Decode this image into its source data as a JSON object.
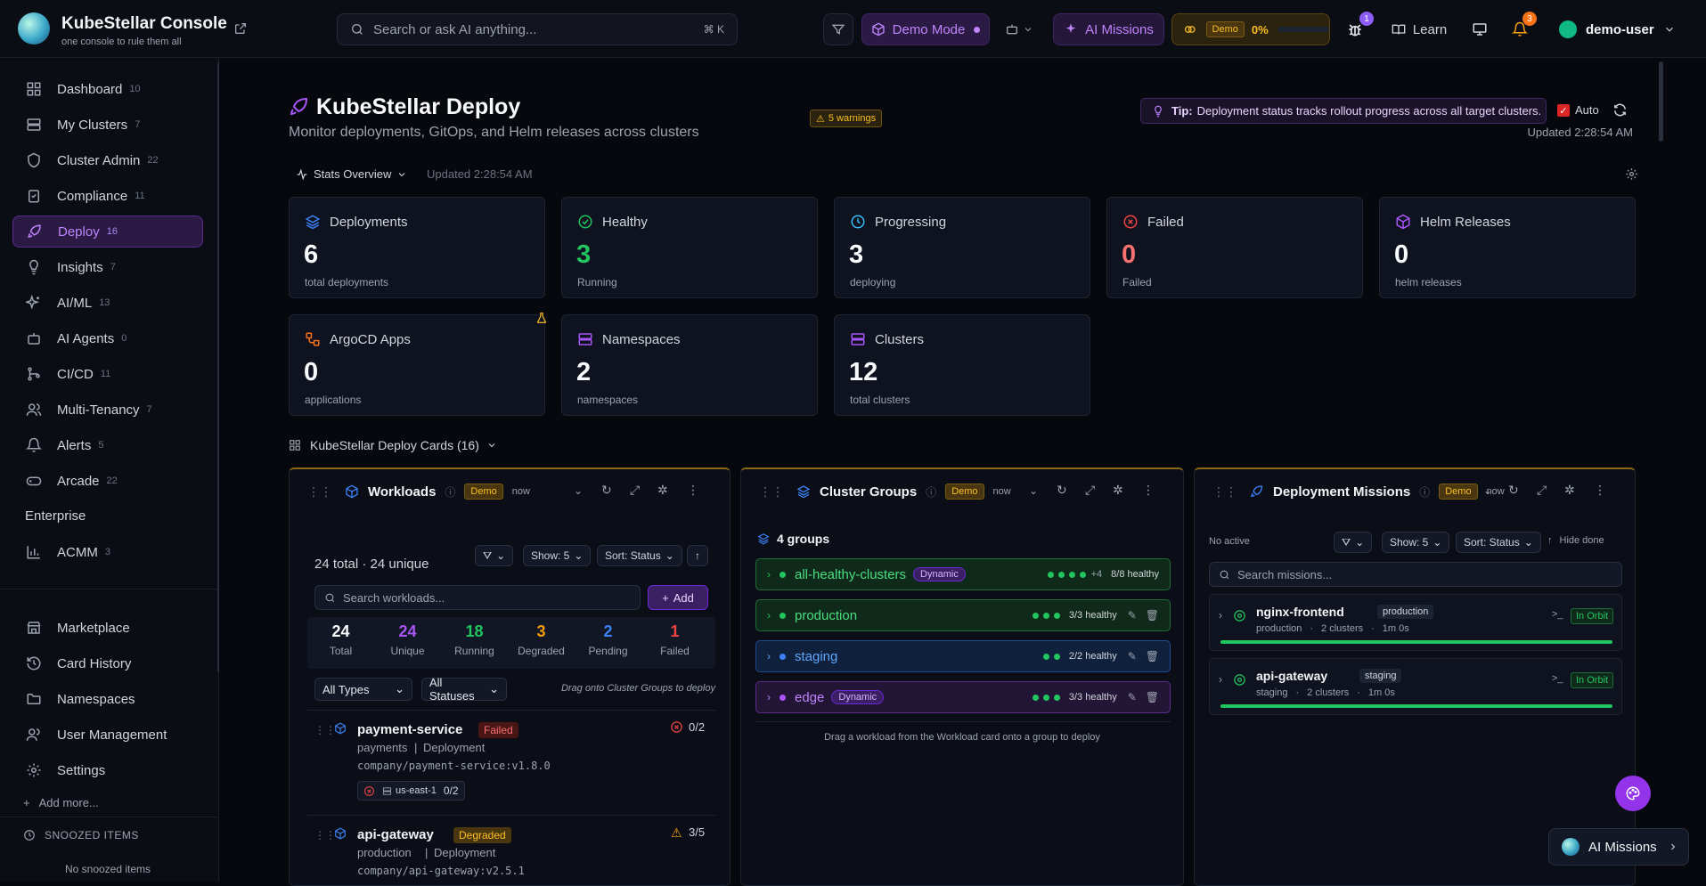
{
  "header": {
    "title": "KubeStellar Console",
    "subtitle": "one console to rule them all",
    "search_placeholder": "Search or ask AI anything...",
    "search_shortcut": "⌘ K",
    "demo_mode_label": "Demo Mode",
    "ai_missions_label": "AI Missions",
    "demo_badge": "Demo",
    "demo_percent": "0%",
    "bug_count": "1",
    "learn_label": "Learn",
    "notification_count": "3",
    "user_name": "demo-user"
  },
  "sidebar": {
    "items": [
      {
        "label": "Dashboard",
        "count": "10"
      },
      {
        "label": "My Clusters",
        "count": "7"
      },
      {
        "label": "Cluster Admin",
        "count": "22"
      },
      {
        "label": "Compliance",
        "count": "11"
      },
      {
        "label": "Deploy",
        "count": "16"
      },
      {
        "label": "Insights",
        "count": "7"
      },
      {
        "label": "AI/ML",
        "count": "13"
      },
      {
        "label": "AI Agents",
        "count": "0"
      },
      {
        "label": "CI/CD",
        "count": "11"
      },
      {
        "label": "Multi-Tenancy",
        "count": "7"
      },
      {
        "label": "Alerts",
        "count": "5"
      },
      {
        "label": "Arcade",
        "count": "22"
      }
    ],
    "enterprise_label": "Enterprise",
    "acmm": {
      "label": "ACMM",
      "count": "3"
    },
    "bottom_items": [
      {
        "label": "Marketplace"
      },
      {
        "label": "Card History"
      },
      {
        "label": "Namespaces"
      },
      {
        "label": "User Management"
      },
      {
        "label": "Settings"
      }
    ],
    "add_more": "Add more...",
    "snoozed_title": "SNOOZED ITEMS",
    "snoozed_empty": "No snoozed items"
  },
  "page": {
    "title": "KubeStellar Deploy",
    "subtitle": "Monitor deployments, GitOps, and Helm releases across clusters",
    "warnings": "5 warnings",
    "tip_label": "Tip:",
    "tip_text": "Deployment status tracks rollout progress across all target clusters.",
    "auto_label": "Auto",
    "updated": "Updated 2:28:54 AM",
    "stats_overview": "Stats Overview",
    "stats_updated": "Updated 2:28:54 AM",
    "cards_section": "KubeStellar Deploy Cards (16)"
  },
  "stats": [
    {
      "label": "Deployments",
      "value": "6",
      "sub": "total deployments",
      "color": "#f9fafb"
    },
    {
      "label": "Healthy",
      "value": "3",
      "sub": "Running",
      "color": "#22c55e"
    },
    {
      "label": "Progressing",
      "value": "3",
      "sub": "deploying",
      "color": "#f9fafb"
    },
    {
      "label": "Failed",
      "value": "0",
      "sub": "Failed",
      "color": "#f87171"
    },
    {
      "label": "Helm Releases",
      "value": "0",
      "sub": "helm releases",
      "color": "#f9fafb"
    },
    {
      "label": "ArgoCD Apps",
      "value": "0",
      "sub": "applications",
      "color": "#f9fafb"
    },
    {
      "label": "Namespaces",
      "value": "2",
      "sub": "namespaces",
      "color": "#f9fafb"
    },
    {
      "label": "Clusters",
      "value": "12",
      "sub": "total clusters",
      "color": "#f9fafb"
    }
  ],
  "workloads": {
    "title": "Workloads",
    "demo": "Demo",
    "time": "now",
    "summary": "24 total · 24 unique",
    "show": "Show: 5",
    "sort": "Sort: Status",
    "search_placeholder": "Search workloads...",
    "add_label": "Add",
    "counts": [
      {
        "value": "24",
        "label": "Total",
        "color": "#f9fafb"
      },
      {
        "value": "24",
        "label": "Unique",
        "color": "#a855f7"
      },
      {
        "value": "18",
        "label": "Running",
        "color": "#22c55e"
      },
      {
        "value": "3",
        "label": "Degraded",
        "color": "#f59e0b"
      },
      {
        "value": "2",
        "label": "Pending",
        "color": "#3b82f6"
      },
      {
        "value": "1",
        "label": "Failed",
        "color": "#ef4444"
      }
    ],
    "type_filter": "All Types",
    "status_filter": "All Statuses",
    "drag_hint": "Drag onto Cluster Groups to deploy",
    "items": [
      {
        "name": "payment-service",
        "status": "Failed",
        "meta_ns": "payments",
        "meta_kind": "Deployment",
        "image": "company/payment-service:v1.8.0",
        "ratio": "0/2",
        "cluster": "us-east-1",
        "cluster_ratio": "0/2"
      },
      {
        "name": "api-gateway",
        "status": "Degraded",
        "meta_ns": "production",
        "meta_kind": "Deployment",
        "image": "company/api-gateway:v2.5.1",
        "ratio": "3/5"
      }
    ]
  },
  "cluster_groups": {
    "title": "Cluster Groups",
    "demo": "Demo",
    "time": "now",
    "count_label": "4 groups",
    "groups": [
      {
        "name": "all-healthy-clusters",
        "dynamic": "Dynamic",
        "extra": "+4",
        "health": "8/8 healthy"
      },
      {
        "name": "production",
        "health": "3/3 healthy"
      },
      {
        "name": "staging",
        "health": "2/2 healthy"
      },
      {
        "name": "edge",
        "dynamic": "Dynamic",
        "health": "3/3 healthy"
      }
    ],
    "hint": "Drag a workload from the Workload card onto a group to deploy"
  },
  "missions": {
    "title": "Deployment Missions",
    "demo": "Demo",
    "time": "now",
    "no_active": "No active",
    "show": "Show: 5",
    "sort": "Sort: Status",
    "hide_done": "Hide done",
    "search_placeholder": "Search missions...",
    "items": [
      {
        "name": "nginx-frontend",
        "tag": "production",
        "meta_ns": "production",
        "meta_clusters": "2 clusters",
        "meta_time": "1m 0s",
        "status": "In Orbit",
        "progress": 1.0
      },
      {
        "name": "api-gateway",
        "tag": "staging",
        "meta_ns": "staging",
        "meta_clusters": "2 clusters",
        "meta_time": "1m 0s",
        "status": "In Orbit",
        "progress": 1.0
      }
    ]
  },
  "floating": {
    "ai_missions": "AI Missions"
  }
}
